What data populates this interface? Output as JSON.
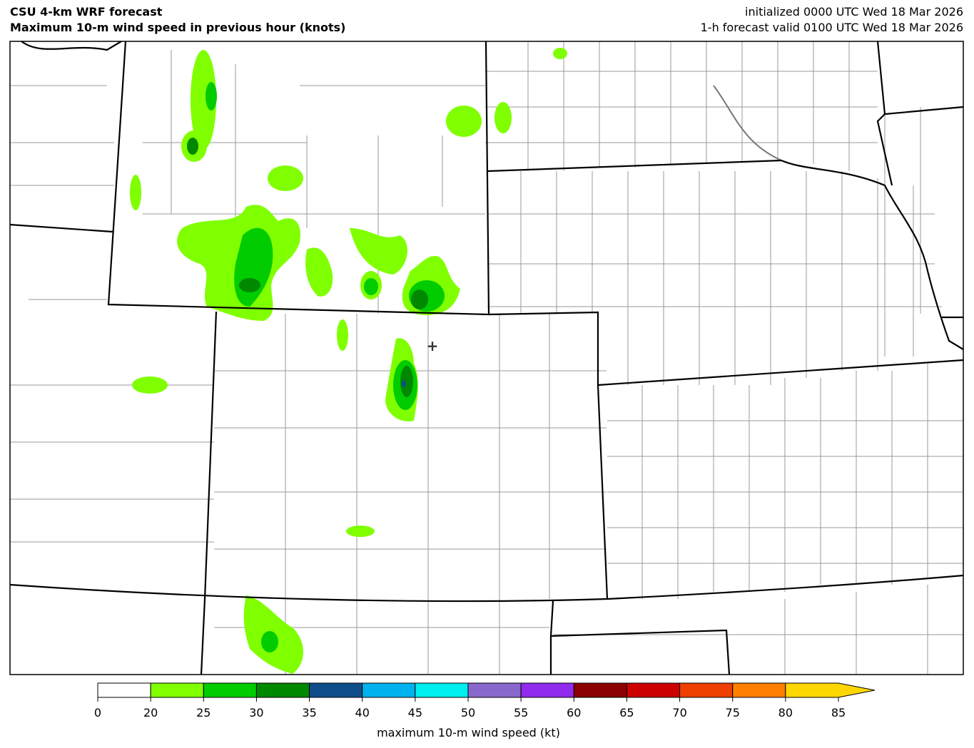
{
  "header": {
    "title_line1": "CSU 4-km WRF forecast",
    "title_line2": "Maximum 10-m wind speed in previous hour (knots)",
    "init_line": "initialized 0000 UTC Wed 18 Mar 2026",
    "valid_line": "1-h forecast valid 0100 UTC Wed 18 Mar 2026"
  },
  "colorbar": {
    "label": "maximum 10-m wind speed (kt)",
    "ticks": [
      "0",
      "20",
      "25",
      "30",
      "35",
      "40",
      "45",
      "50",
      "55",
      "60",
      "65",
      "70",
      "75",
      "80",
      "85"
    ],
    "colors": [
      "#ffffff",
      "#80ff00",
      "#00cc00",
      "#008800",
      "#104e8b",
      "#00b2ee",
      "#00eeee",
      "#8968cd",
      "#912cee",
      "#8b0000",
      "#cd0000",
      "#ee4000",
      "#ff7f00",
      "#ffd700"
    ],
    "extend": "max"
  },
  "map": {
    "marker": "+",
    "colors": {
      "c20": "#80ff00",
      "c25": "#00cc00",
      "c30": "#008800",
      "c35": "#104e8b",
      "border": "#000000",
      "county": "#999999"
    }
  }
}
